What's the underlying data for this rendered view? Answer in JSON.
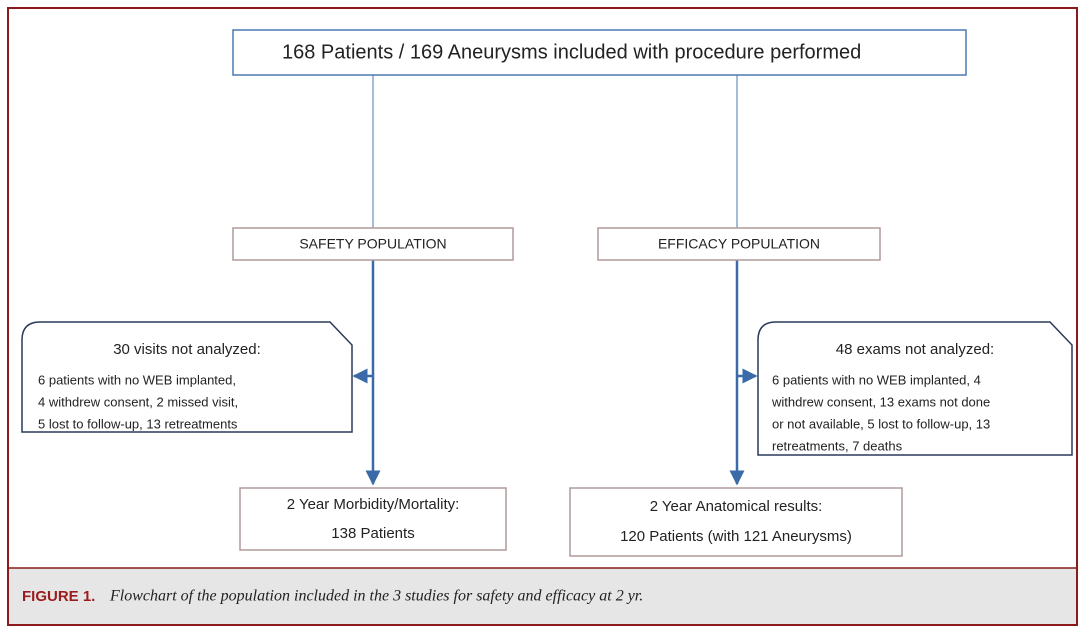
{
  "nodes": [
    {
      "label": "168 Patients / 169 Aneurysms included with procedure performed"
    },
    {
      "label": "SAFETY POPULATION"
    },
    {
      "label": "EFFICACY POPULATION"
    },
    {
      "title": "30 visits not analyzed:",
      "lines": [
        "6 patients with no WEB implanted,",
        "4 withdrew consent, 2 missed visit,",
        "5 lost to follow-up, 13 retreatments"
      ]
    },
    {
      "title": "48 exams not analyzed:",
      "lines": [
        "6 patients with no WEB implanted, 4",
        "withdrew consent, 13 exams not done",
        "or not available,  5 lost to follow-up, 13",
        "retreatments, 7 deaths"
      ]
    },
    {
      "title": "2 Year Morbidity/Mortality:",
      "detail": "138 Patients"
    },
    {
      "title": "2 Year Anatomical results:",
      "detail": "120 Patients (with 121 Aneurysms)"
    }
  ],
  "caption": {
    "label": "FIGURE 1.",
    "text": "Flowchart of the population included in the 3 studies for safety and efficacy at 2 yr."
  }
}
